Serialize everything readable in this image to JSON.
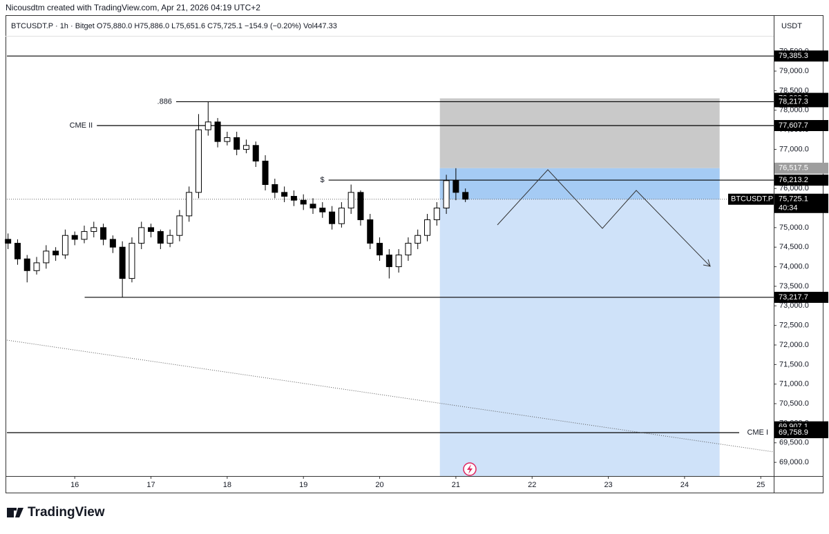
{
  "header": "Nicousdtm created with TradingView.com, Apr 21, 2026 04:19 UTC+2",
  "legend": "BTCUSDT.P · 1h · Bitget  O75,880.0  H75,886.0  L75,651.6  C75,725.1  −154.9 (−0.20%)  Vol447.33",
  "currency": "USDT",
  "brand": "TradingView",
  "chart_data": {
    "type": "candlestick",
    "x": [
      15.125,
      15.25,
      15.375,
      15.5,
      15.625,
      15.75,
      15.875,
      16,
      16.125,
      16.25,
      16.375,
      16.5,
      16.625,
      16.75,
      16.875,
      17,
      17.125,
      17.25,
      17.375,
      17.5,
      17.625,
      17.75,
      17.875,
      18,
      18.125,
      18.25,
      18.375,
      18.5,
      18.625,
      18.75,
      18.875,
      19,
      19.125,
      19.25,
      19.375,
      19.5,
      19.625,
      19.75,
      19.875,
      20,
      20.125,
      20.25,
      20.375,
      20.5,
      20.625,
      20.75,
      20.875,
      21,
      21.125
    ],
    "open": [
      74700,
      74600,
      74200,
      73900,
      74100,
      74400,
      74300,
      74800,
      74700,
      74900,
      75000,
      74700,
      74500,
      73700,
      74600,
      75000,
      74900,
      74600,
      74800,
      75300,
      75900,
      77500,
      77700,
      77200,
      77300,
      77000,
      77100,
      76700,
      76100,
      75900,
      75800,
      75700,
      75600,
      75500,
      75400,
      75100,
      75500,
      75900,
      75200,
      74600,
      74300,
      74000,
      74300,
      74600,
      74800,
      75200,
      75500,
      76200,
      75900
    ],
    "high": [
      74850,
      74700,
      74300,
      74250,
      74550,
      74500,
      74950,
      74900,
      75050,
      75150,
      75100,
      74800,
      74650,
      74750,
      75150,
      75100,
      74950,
      74950,
      75450,
      76050,
      77900,
      78217.3,
      77800,
      77450,
      77450,
      77250,
      77200,
      76850,
      76250,
      76050,
      75950,
      75850,
      75750,
      75650,
      75550,
      75650,
      76100,
      75950,
      75350,
      74750,
      74450,
      74450,
      74750,
      74950,
      75350,
      75650,
      76350,
      76517.5,
      76000
    ],
    "low": [
      74450,
      74050,
      73600,
      73800,
      73950,
      74150,
      74200,
      74550,
      74600,
      74750,
      74550,
      74350,
      73217.7,
      73600,
      74450,
      74750,
      74450,
      74500,
      74650,
      75150,
      75750,
      77350,
      77050,
      77100,
      76850,
      76900,
      76550,
      75950,
      75750,
      75650,
      75550,
      75450,
      75350,
      75250,
      74950,
      75000,
      75350,
      75050,
      74450,
      74150,
      73700,
      73850,
      74150,
      74450,
      74650,
      75050,
      75350,
      75700,
      75651.6
    ],
    "close": [
      74600,
      74200,
      73900,
      74100,
      74400,
      74300,
      74800,
      74700,
      74900,
      75000,
      74700,
      74500,
      73700,
      74600,
      75000,
      74900,
      74600,
      74800,
      75300,
      75900,
      77500,
      77700,
      77200,
      77300,
      77000,
      77100,
      76700,
      76100,
      75900,
      75800,
      75700,
      75600,
      75500,
      75400,
      75100,
      75500,
      75900,
      75200,
      74600,
      74300,
      74000,
      74300,
      74600,
      74800,
      75200,
      75500,
      76200,
      75900,
      75725.1
    ],
    "up_color": "#ffffff",
    "down_color": "#000000",
    "wick_color": "#000000",
    "xlim": [
      15.11,
      25.17
    ],
    "xticks": [
      16,
      17,
      18,
      19,
      20,
      21,
      22,
      23,
      24,
      25
    ],
    "ylim": [
      68650,
      79900
    ],
    "yticks": [
      {
        "value": 69000,
        "label": "69,000.0"
      },
      {
        "value": 69500,
        "label": "69,500.0"
      },
      {
        "value": 70000,
        "label": "70,000.0"
      },
      {
        "value": 70500,
        "label": "70,500.0"
      },
      {
        "value": 71000,
        "label": "71,000.0"
      },
      {
        "value": 71500,
        "label": "71,500.0"
      },
      {
        "value": 72000,
        "label": "72,000.0"
      },
      {
        "value": 72500,
        "label": "72,500.0"
      },
      {
        "value": 73000,
        "label": "73,000.0"
      },
      {
        "value": 73500,
        "label": "73,500.0"
      },
      {
        "value": 74000,
        "label": "74,000.0"
      },
      {
        "value": 74500,
        "label": "74,500.0"
      },
      {
        "value": 75000,
        "label": "75,000.0"
      },
      {
        "value": 75500,
        "label": "75,500.0"
      },
      {
        "value": 76000,
        "label": "76,000.0"
      },
      {
        "value": 76500,
        "label": "76,500.0"
      },
      {
        "value": 77000,
        "label": "77,000.0"
      },
      {
        "value": 77500,
        "label": "77,500.0"
      },
      {
        "value": 78000,
        "label": "78,000.0"
      },
      {
        "value": 78500,
        "label": "78,500.0"
      },
      {
        "value": 79000,
        "label": "79,000.0"
      },
      {
        "value": 79500,
        "label": "79,500.0"
      }
    ],
    "levels": [
      {
        "value": 79385.3,
        "label": "79,385.3",
        "line_from": 15.11
      },
      {
        "value": 78303.2,
        "label": "78,303.2"
      },
      {
        "value": 78217.3,
        "label": "78,217.3",
        "line_from": 17.33,
        "name": ".886"
      },
      {
        "value": 77607.7,
        "label": "77,607.7",
        "line_from": 16.29,
        "name": "CME II"
      },
      {
        "value": 76517.5,
        "label": "76,517.5",
        "color": "#9e9e9e"
      },
      {
        "value": 76213.2,
        "label": "76,213.2",
        "line_from": 19.33,
        "name": "$"
      },
      {
        "value": 73217.7,
        "label": "73,217.7",
        "line_from": 16.13
      },
      {
        "value": 69907.1,
        "label": "69,907.1"
      },
      {
        "value": 69758.9,
        "label": "69,758.9",
        "line_from": 15.11,
        "name": "CME I",
        "name_side": "right"
      }
    ],
    "position": {
      "x": [
        20.79,
        24.46
      ],
      "stop": 78303.2,
      "entry": 76517.5,
      "stop_color": "#c9c9c9",
      "target_color": "#cfe2f9",
      "open_color": "#a5cbf4"
    },
    "current": {
      "value": 75725.1,
      "label": "75,725.1",
      "symbol": "BTCUSDT.P",
      "countdown": "40:34"
    }
  }
}
